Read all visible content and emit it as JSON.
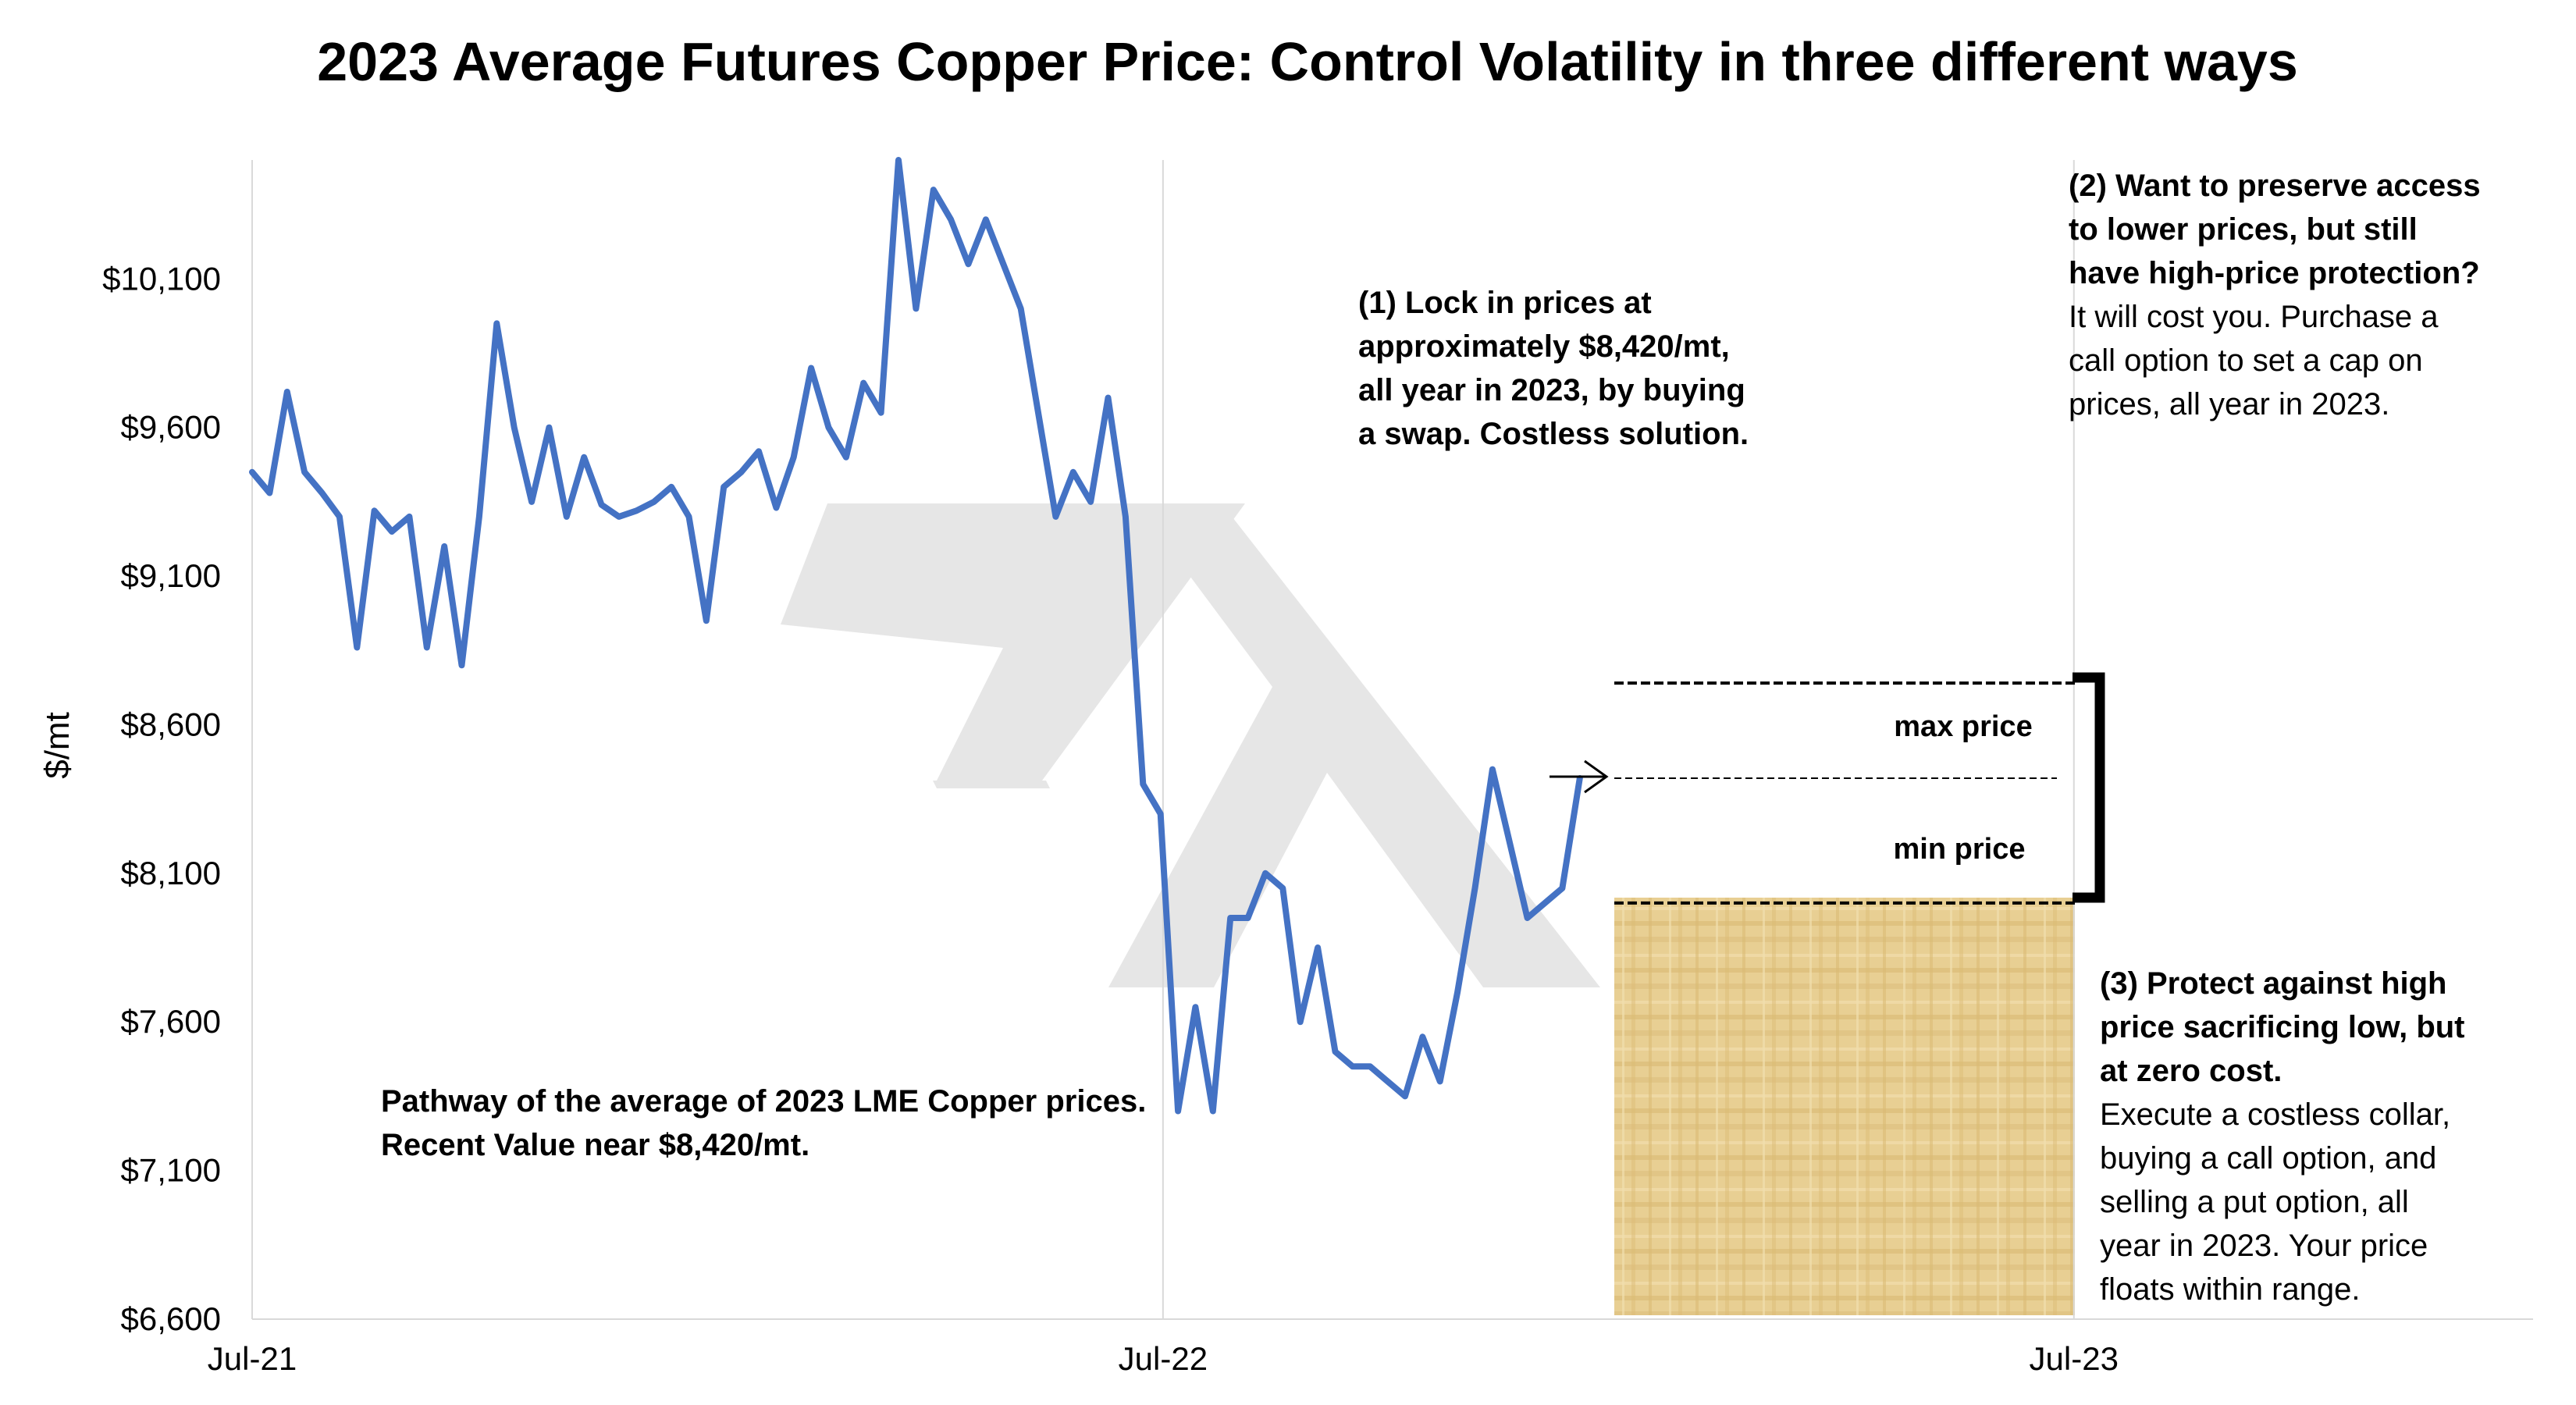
{
  "chart_data": {
    "type": "line",
    "title": "2023 Average Futures Copper Price: Control Volatility in three different ways",
    "ylabel": "$/mt",
    "xlabel": "",
    "ylim": [
      6600,
      10500
    ],
    "xlim": [
      "2021-07-01",
      "2024-01-01"
    ],
    "y_ticks": [
      "$6,600",
      "$7,100",
      "$7,600",
      "$8,100",
      "$8,600",
      "$9,100",
      "$9,600",
      "$10,100"
    ],
    "y_tick_values": [
      6600,
      7100,
      7600,
      8100,
      8600,
      9100,
      9600,
      10100
    ],
    "x_ticks": [
      "Jul-21",
      "Jul-22",
      "Jul-23"
    ],
    "x_tick_dates": [
      "2021-07-01",
      "2022-07-01",
      "2023-07-01"
    ],
    "vertical_gridlines": true,
    "series_color": "#4472C4",
    "series": [
      {
        "name": "",
        "x": [
          "2021-07-01",
          "2021-07-08",
          "2021-07-15",
          "2021-07-22",
          "2021-07-29",
          "2021-08-05",
          "2021-08-12",
          "2021-08-19",
          "2021-08-26",
          "2021-09-02",
          "2021-09-09",
          "2021-09-16",
          "2021-09-23",
          "2021-09-30",
          "2021-10-07",
          "2021-10-14",
          "2021-10-21",
          "2021-10-28",
          "2021-11-04",
          "2021-11-11",
          "2021-11-18",
          "2021-11-25",
          "2021-12-02",
          "2021-12-09",
          "2021-12-16",
          "2021-12-23",
          "2021-12-30",
          "2022-01-06",
          "2022-01-13",
          "2022-01-20",
          "2022-01-27",
          "2022-02-03",
          "2022-02-10",
          "2022-02-17",
          "2022-02-24",
          "2022-03-03",
          "2022-03-10",
          "2022-03-17",
          "2022-03-24",
          "2022-03-31",
          "2022-04-07",
          "2022-04-14",
          "2022-04-21",
          "2022-04-28",
          "2022-05-05",
          "2022-05-12",
          "2022-05-19",
          "2022-05-26",
          "2022-06-02",
          "2022-06-09",
          "2022-06-16",
          "2022-06-23",
          "2022-06-30",
          "2022-07-07",
          "2022-07-14",
          "2022-07-21",
          "2022-07-28",
          "2022-08-04",
          "2022-08-11",
          "2022-08-18",
          "2022-08-25",
          "2022-09-01",
          "2022-09-08",
          "2022-09-15",
          "2022-09-22",
          "2022-09-29",
          "2022-10-06",
          "2022-10-13",
          "2022-10-20",
          "2022-10-27",
          "2022-11-03",
          "2022-11-10",
          "2022-11-17",
          "2022-11-24",
          "2022-12-01",
          "2022-12-08",
          "2022-12-15"
        ],
        "values": [
          9450,
          9380,
          9720,
          9450,
          9380,
          9300,
          8860,
          9320,
          9250,
          9300,
          8860,
          9200,
          8800,
          9300,
          9950,
          9600,
          9350,
          9600,
          9300,
          9500,
          9340,
          9300,
          9320,
          9350,
          9400,
          9300,
          8950,
          9400,
          9450,
          9520,
          9330,
          9500,
          9800,
          9600,
          9500,
          9750,
          9650,
          10500,
          10000,
          10400,
          10300,
          10150,
          10300,
          10150,
          10000,
          9650,
          9300,
          9450,
          9350,
          9700,
          9300,
          8400,
          8300,
          7300,
          7650,
          7300,
          7950,
          7950,
          8100,
          8050,
          7600,
          7850,
          7500,
          7450,
          7450,
          7400,
          7350,
          7550,
          7400,
          7700,
          8050,
          8450,
          8200,
          7950,
          8000,
          8050,
          8420
        ]
      }
    ],
    "annotations": {
      "pathway": [
        "Pathway of the average of 2023 LME Copper prices.",
        "Recent Value near $8,420/mt."
      ],
      "swap": [
        "(1) Lock in prices at",
        "approximately $8,420/mt,",
        "all year in 2023, by buying",
        "a swap. Costless solution."
      ],
      "call_bold": [
        "(2) Want to preserve access",
        "to lower prices, but still",
        "have high-price protection?"
      ],
      "call_text": [
        "It will cost you. Purchase a",
        "call option to set a cap on",
        "prices, all year in 2023."
      ],
      "collar_bold": [
        "(3) Protect against high",
        "price sacrificing low, but",
        "at zero cost."
      ],
      "collar_text": [
        "Execute a costless collar,",
        "buying a call option, and",
        "selling a put option, all",
        "year in 2023.  Your price",
        "floats within range."
      ],
      "max_price": "max price",
      "min_price": "min price",
      "swap_level": 8420,
      "max_level": 8740,
      "min_level": 8000
    }
  }
}
